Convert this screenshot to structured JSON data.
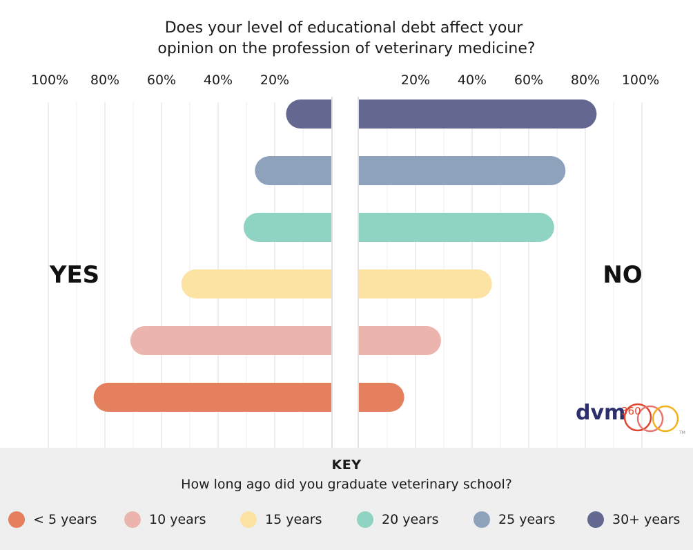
{
  "chart_data": {
    "type": "bar",
    "title": "Does your level of educational debt affect your opinion on the profession of veterinary medicine?",
    "title_lines": [
      "Does your level of educational debt affect your",
      "opinion on the profession of veterinary medicine?"
    ],
    "left_label": "YES",
    "right_label": "NO",
    "left_ticks": [
      "100%",
      "80%",
      "60%",
      "40%",
      "20%"
    ],
    "right_ticks": [
      "20%",
      "40%",
      "60%",
      "80%",
      "100%"
    ],
    "xlim": [
      0,
      100
    ],
    "grid": true,
    "categories": [
      "30+ years",
      "25 years",
      "20 years",
      "15 years",
      "10 years",
      "< 5 years"
    ],
    "series": [
      {
        "name": "YES",
        "values": [
          16,
          27,
          31,
          53,
          71,
          84
        ]
      },
      {
        "name": "NO",
        "values": [
          84,
          73,
          69,
          47,
          29,
          16
        ]
      }
    ]
  },
  "key": {
    "title": "KEY",
    "subtitle": "How long ago did you graduate veterinary school?",
    "items": [
      {
        "label": "< 5 years",
        "color": "#e4805e"
      },
      {
        "label": "10 years",
        "color": "#ebb4ad"
      },
      {
        "label": "15 years",
        "color": "#fde3a3"
      },
      {
        "label": "20 years",
        "color": "#8fd3c3"
      },
      {
        "label": "25 years",
        "color": "#8ea3bb"
      },
      {
        "label": "30+ years",
        "color": "#646890"
      }
    ]
  },
  "logo": {
    "text": "dvm",
    "number": "360",
    "trademark": "TM",
    "text_color": "#2d2f6b",
    "ring_colors": [
      "#e0452f",
      "#e8756f",
      "#f3b01b"
    ]
  }
}
